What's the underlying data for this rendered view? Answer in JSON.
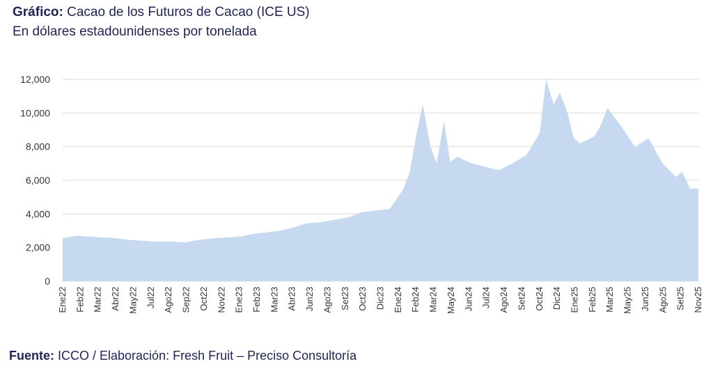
{
  "header": {
    "title_bold": "Gráfico:",
    "title_rest": " Cacao de los Futuros de Cacao  (ICE US)",
    "subtitle": "En dólares estadounidenses por tonelada"
  },
  "footer": {
    "label_bold": "Fuente:",
    "text": " ICCO / Elaboración: Fresh Fruit – Preciso Consultoría"
  },
  "colors": {
    "area": "#c6d9f0",
    "grid": "#d9d9d9",
    "text": "#1f2453"
  },
  "chart_data": {
    "type": "area",
    "ylim": [
      0,
      12000
    ],
    "y_ticks": [
      0,
      2000,
      4000,
      6000,
      8000,
      10000,
      12000
    ],
    "y_tick_labels": [
      "0",
      "2,000",
      "4,000",
      "6,000",
      "8,000",
      "10,000",
      "12,000"
    ],
    "x_tick_labels": [
      "Ene22",
      "Feb22",
      "Mar22",
      "Abr22",
      "May22",
      "Jul22",
      "Ago22",
      "Sep22",
      "Oct22",
      "Nov22",
      "Ene23",
      "Feb23",
      "Mar23",
      "Abr23",
      "Jun23",
      "Ago23",
      "Set23",
      "Oct23",
      "Dic23",
      "Ene24",
      "Feb24",
      "Mar24",
      "May24",
      "Jun24",
      "Jul24",
      "Ago24",
      "Set24",
      "Oct24",
      "Dic24",
      "Ene25",
      "Feb25",
      "Mar25",
      "May25",
      "Jun25",
      "Ago25",
      "Set25",
      "Nov25"
    ],
    "x": [
      "2022-01",
      "2022-02",
      "2022-03",
      "2022-04",
      "2022-05",
      "2022-06",
      "2022-07",
      "2022-08",
      "2022-09",
      "2022-10",
      "2022-11",
      "2022-12",
      "2023-01",
      "2023-02",
      "2023-03",
      "2023-04",
      "2023-05",
      "2023-06",
      "2023-07",
      "2023-08",
      "2023-09",
      "2023-10",
      "2023-11",
      "2023-12",
      "2024-01",
      "2024-02",
      "2024-02-15",
      "2024-03",
      "2024-03-15",
      "2024-04",
      "2024-04-15",
      "2024-05",
      "2024-05-15",
      "2024-06",
      "2024-06-15",
      "2024-07",
      "2024-08",
      "2024-09",
      "2024-10",
      "2024-11",
      "2024-12",
      "2024-12-15",
      "2025-01",
      "2025-01-15",
      "2025-02",
      "2025-02-15",
      "2025-03",
      "2025-04",
      "2025-04-15",
      "2025-05",
      "2025-06",
      "2025-07",
      "2025-08",
      "2025-08-15",
      "2025-09",
      "2025-10",
      "2025-10-15",
      "2025-11"
    ],
    "values": [
      2550,
      2700,
      2650,
      2600,
      2550,
      2450,
      2400,
      2350,
      2350,
      2300,
      2450,
      2550,
      2600,
      2650,
      2800,
      2900,
      3000,
      3200,
      3450,
      3500,
      3650,
      3800,
      4100,
      4200,
      4300,
      5500,
      6500,
      8800,
      10500,
      8000,
      7000,
      9500,
      7100,
      7400,
      7200,
      7000,
      6800,
      6600,
      7000,
      7500,
      8800,
      12000,
      10500,
      11200,
      10000,
      8500,
      8200,
      8600,
      9200,
      10300,
      9200,
      8000,
      8500,
      7800,
      7000,
      6200,
      6500,
      5500
    ]
  }
}
